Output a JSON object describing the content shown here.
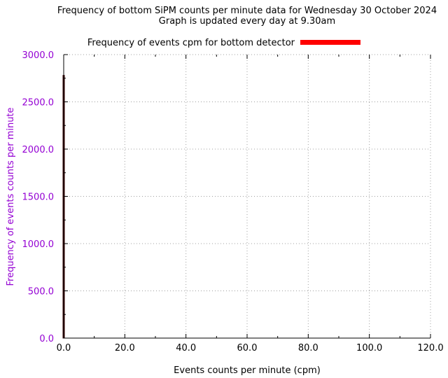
{
  "chart_data": {
    "type": "bar",
    "title": "Frequency of bottom SiPM counts per minute data for Wednesday 30 October 2024",
    "subtitle": "Graph is updated every day at 9.30am",
    "xlabel": "Events counts per minute (cpm)",
    "ylabel": "Frequency of events counts per minute",
    "xlim": [
      0,
      120
    ],
    "ylim": [
      0,
      3000
    ],
    "x_ticks": [
      "0.0",
      "20.0",
      "40.0",
      "60.0",
      "80.0",
      "100.0",
      "120.0"
    ],
    "y_ticks": [
      "0.0",
      "500.0",
      "1000.0",
      "1500.0",
      "2000.0",
      "2500.0",
      "3000.0"
    ],
    "grid": true,
    "legend_position": "top",
    "series": [
      {
        "name": "Frequency of events cpm for bottom detector",
        "color": "#ff0000",
        "x": [
          0
        ],
        "values": [
          2780
        ]
      }
    ],
    "colors": {
      "axis_label": "#9400d3",
      "y_tick_label": "#9400d3",
      "grid": "#a0a0a0",
      "bar_outline": "#3a0000"
    }
  }
}
